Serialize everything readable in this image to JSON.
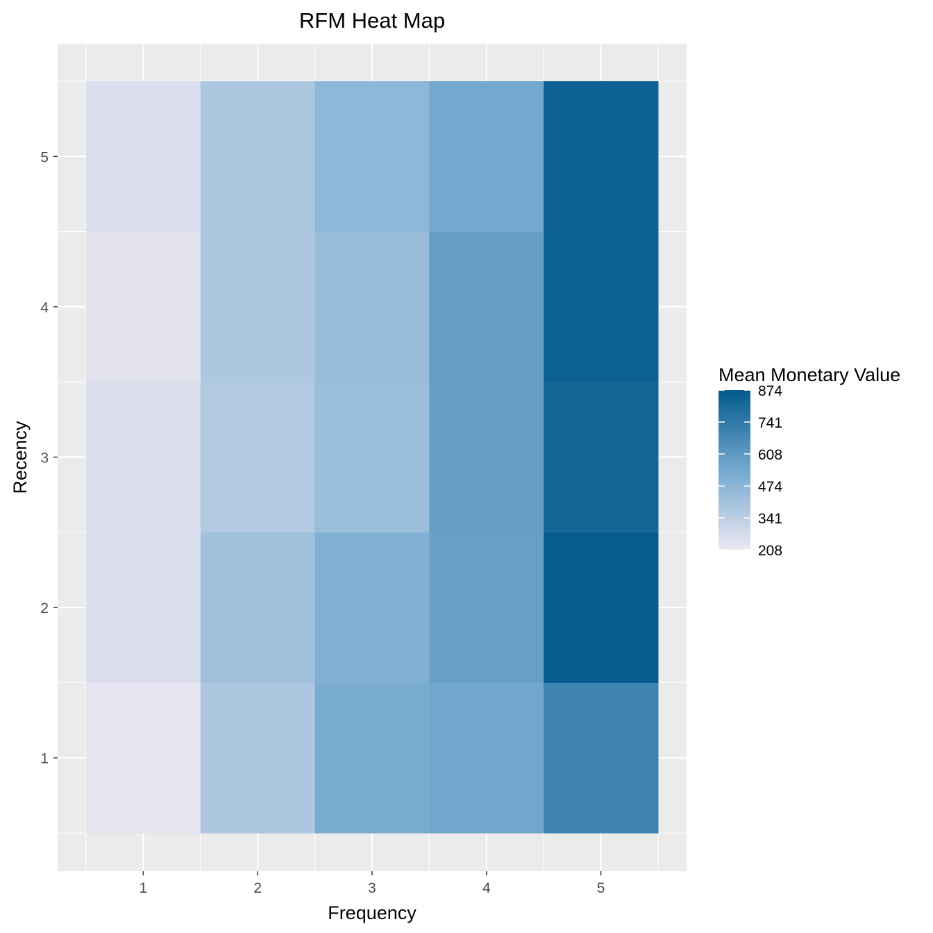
{
  "chart_data": {
    "type": "heatmap",
    "title": "RFM Heat Map",
    "xlabel": "Frequency",
    "ylabel": "Recency",
    "x_categories": [
      "1",
      "2",
      "3",
      "4",
      "5"
    ],
    "y_categories": [
      "1",
      "2",
      "3",
      "4",
      "5"
    ],
    "values": [
      [
        225,
        380,
        525,
        550,
        700
      ],
      [
        255,
        420,
        505,
        580,
        865
      ],
      [
        255,
        370,
        435,
        585,
        820
      ],
      [
        235,
        380,
        440,
        590,
        850
      ],
      [
        255,
        380,
        465,
        540,
        840
      ]
    ],
    "values_layout": "rows are Recency 1..5, columns are Frequency 1..5",
    "legend": {
      "title": "Mean Monetary Value",
      "min": 208,
      "max": 874,
      "ticks": [
        "874",
        "741",
        "608",
        "474",
        "341",
        "208"
      ],
      "placement": "right"
    },
    "colors": {
      "low": "#ece7f2",
      "mid": "#74a9cf",
      "high": "#045a8d",
      "panel_background": "#ebebeb",
      "grid_major": "#ffffff"
    },
    "grid": true
  }
}
